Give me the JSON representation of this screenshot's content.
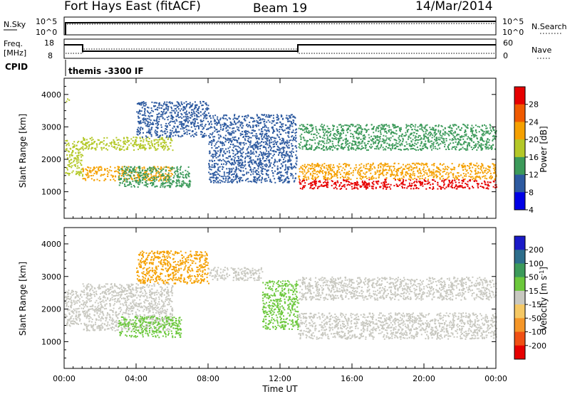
{
  "header": {
    "station": "Fort Hays East (fitACF)",
    "beam": "Beam 19",
    "date": "14/Mar/2014"
  },
  "top_panels": {
    "nsky": {
      "label": "N.Sky",
      "ticks": [
        "10^5",
        "10^0"
      ],
      "right_label": "N.Search",
      "right_ticks": [
        "10^5",
        "10^0"
      ]
    },
    "freq": {
      "label_line1": "Freq.",
      "label_line2": "[MHz]",
      "ticks": [
        "18",
        "8"
      ],
      "right_label": "Nave",
      "right_ticks": [
        "60",
        "0"
      ]
    },
    "cpid": {
      "label": "CPID",
      "program": "themis -3300 IF"
    }
  },
  "power_colorbar": {
    "label": "Power [dB]",
    "ticks": [
      "28",
      "24",
      "20",
      "16",
      "12",
      "8",
      "4"
    ],
    "colors": [
      "#e60000",
      "#f05a00",
      "#f5a000",
      "#b4c828",
      "#3c9a5a",
      "#2d5aa0",
      "#0000e6"
    ]
  },
  "velocity_colorbar": {
    "label": "Velocity [m s",
    "label_sup": "-1",
    "label_end": "]",
    "ticks": [
      "200",
      "100",
      "50",
      "15",
      "-15",
      "-50",
      "-100",
      "-200"
    ],
    "colors": [
      "#1a1ac8",
      "#2d6e8c",
      "#3c9a5a",
      "#6cc83c",
      "#c8c8c0",
      "#f5c864",
      "#f59628",
      "#f05014",
      "#e60000"
    ]
  },
  "chart_data": [
    {
      "type": "heatmap",
      "name": "power",
      "x_ticks": [
        "00:00",
        "04:00",
        "08:00",
        "12:00",
        "16:00",
        "20:00",
        "00:00"
      ],
      "ylabel": "Slant Range [km]",
      "y_ticks": [
        4000,
        3000,
        2000,
        1000
      ],
      "ylim": [
        180,
        4500
      ],
      "xlim": [
        0,
        24
      ],
      "echo_regions": [
        {
          "t": [
            0.1,
            0.3
          ],
          "r": [
            3800,
            3900
          ],
          "level": 3
        },
        {
          "t": [
            0.05,
            1.0
          ],
          "r": [
            1500,
            2600
          ],
          "level": 3
        },
        {
          "t": [
            1.0,
            6.0
          ],
          "r": [
            1350,
            1800
          ],
          "level": 4
        },
        {
          "t": [
            1.0,
            6.0
          ],
          "r": [
            2300,
            2700
          ],
          "level": 3
        },
        {
          "t": [
            3.0,
            7.0
          ],
          "r": [
            1150,
            1800
          ],
          "level": 2
        },
        {
          "t": [
            4.0,
            8.0
          ],
          "r": [
            2700,
            3800
          ],
          "level": 1
        },
        {
          "t": [
            8.0,
            12.9
          ],
          "r": [
            1300,
            3400
          ],
          "level": 1
        },
        {
          "t": [
            13.0,
            24.0
          ],
          "r": [
            1100,
            1400
          ],
          "level": 6
        },
        {
          "t": [
            13.0,
            24.0
          ],
          "r": [
            1400,
            1900
          ],
          "level": 4
        },
        {
          "t": [
            13.0,
            24.0
          ],
          "r": [
            2300,
            3100
          ],
          "level": 2
        }
      ]
    },
    {
      "type": "heatmap",
      "name": "velocity",
      "x_ticks": [
        "00:00",
        "04:00",
        "08:00",
        "12:00",
        "16:00",
        "20:00",
        "00:00"
      ],
      "xlabel": "Time UT",
      "ylabel": "Slant Range [km]",
      "y_ticks": [
        4000,
        3000,
        2000,
        1000
      ],
      "ylim": [
        180,
        4500
      ],
      "xlim": [
        0,
        24
      ],
      "echo_regions": [
        {
          "t": [
            0.0,
            1.0
          ],
          "r": [
            1500,
            2600
          ],
          "v": 0
        },
        {
          "t": [
            1.0,
            6.0
          ],
          "r": [
            1350,
            2800
          ],
          "v": 0
        },
        {
          "t": [
            3.0,
            6.5
          ],
          "r": [
            1150,
            1800
          ],
          "v": 30
        },
        {
          "t": [
            4.0,
            8.0
          ],
          "r": [
            2800,
            3800
          ],
          "v": -40
        },
        {
          "t": [
            8.0,
            11.0
          ],
          "r": [
            2900,
            3300
          ],
          "v": 0
        },
        {
          "t": [
            11.0,
            13.0
          ],
          "r": [
            1400,
            2900
          ],
          "v": 30
        },
        {
          "t": [
            13.0,
            24.0
          ],
          "r": [
            1100,
            1900
          ],
          "v": 0
        },
        {
          "t": [
            13.0,
            24.0
          ],
          "r": [
            2300,
            3000
          ],
          "v": 0
        }
      ]
    }
  ]
}
